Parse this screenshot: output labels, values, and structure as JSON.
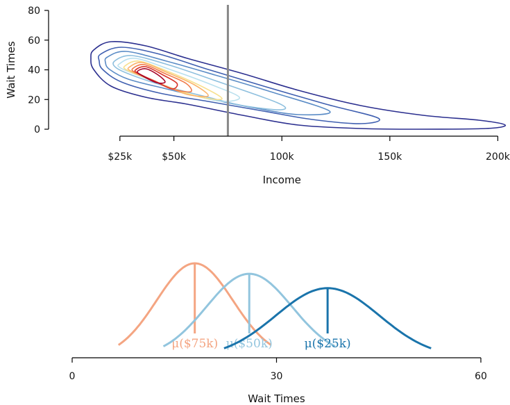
{
  "chart_data": [
    {
      "type": "contour",
      "xlabel": "Income",
      "ylabel": "Wait Times",
      "xlim": [
        0,
        205000
      ],
      "ylim": [
        -3,
        85
      ],
      "xticks": [
        {
          "value": 25000,
          "label": "$25k"
        },
        {
          "value": 50000,
          "label": "$50k"
        },
        {
          "value": 100000,
          "label": "100k"
        },
        {
          "value": 150000,
          "label": "150k"
        },
        {
          "value": 200000,
          "label": "200k"
        }
      ],
      "yticks": [
        {
          "value": 0,
          "label": "0"
        },
        {
          "value": 20,
          "label": "20"
        },
        {
          "value": 40,
          "label": "40"
        },
        {
          "value": 60,
          "label": "60"
        },
        {
          "value": 80,
          "label": "80"
        }
      ],
      "reference_line": {
        "x": 75000,
        "color": "#888888"
      },
      "contour_colors": [
        "#2b2f8f",
        "#3f5fb0",
        "#5b8cc6",
        "#8dbfde",
        "#b9e0ee",
        "#f7e08e",
        "#fbb36a",
        "#f07b4a",
        "#d7342a",
        "#a50026"
      ],
      "grid": false,
      "legend": "none"
    },
    {
      "type": "density",
      "xlabel": "Wait Times",
      "xlim": [
        0,
        60
      ],
      "xticks": [
        {
          "value": 0,
          "label": "0"
        },
        {
          "value": 30,
          "label": "30"
        },
        {
          "value": 60,
          "label": "60"
        }
      ],
      "series": [
        {
          "mean": 18,
          "sd": 5.6,
          "color": "#f4a582",
          "label": "μ($75k)"
        },
        {
          "mean": 26,
          "sd": 6.3,
          "color": "#92c5de",
          "label": "μ($50k)"
        },
        {
          "mean": 37.5,
          "sd": 7.6,
          "color": "#1a74ab",
          "label": "μ($25k)"
        }
      ],
      "grid": false,
      "legend": "none"
    }
  ]
}
